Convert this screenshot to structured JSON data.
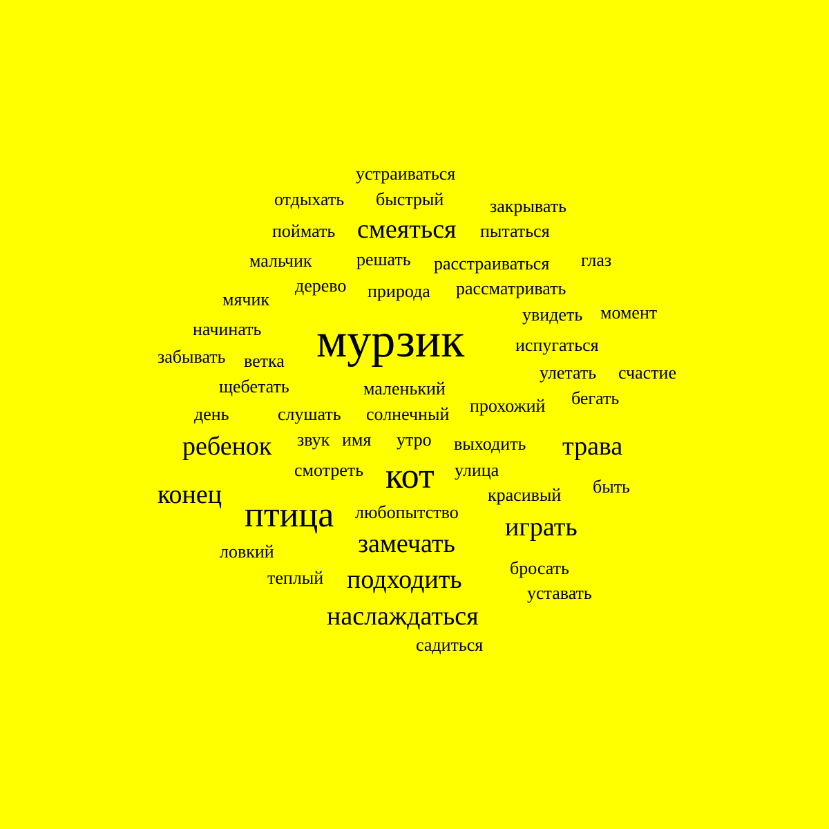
{
  "words": [
    {
      "text": "мурзик"
    },
    {
      "text": "кот"
    },
    {
      "text": "птица"
    },
    {
      "text": "смеяться"
    },
    {
      "text": "ребенок"
    },
    {
      "text": "трава"
    },
    {
      "text": "конец"
    },
    {
      "text": "играть"
    },
    {
      "text": "замечать"
    },
    {
      "text": "подходить"
    },
    {
      "text": "наслаждаться"
    },
    {
      "text": "устраиваться"
    },
    {
      "text": "отдыхать"
    },
    {
      "text": "быстрый"
    },
    {
      "text": "закрывать"
    },
    {
      "text": "поймать"
    },
    {
      "text": "пытаться"
    },
    {
      "text": "мальчик"
    },
    {
      "text": "решать"
    },
    {
      "text": "расстраиваться"
    },
    {
      "text": "глаз"
    },
    {
      "text": "дерево"
    },
    {
      "text": "природа"
    },
    {
      "text": "рассматривать"
    },
    {
      "text": "мячик"
    },
    {
      "text": "увидеть"
    },
    {
      "text": "момент"
    },
    {
      "text": "начинать"
    },
    {
      "text": "испугаться"
    },
    {
      "text": "забывать"
    },
    {
      "text": "ветка"
    },
    {
      "text": "улетать"
    },
    {
      "text": "счастие"
    },
    {
      "text": "щебетать"
    },
    {
      "text": "маленький"
    },
    {
      "text": "бегать"
    },
    {
      "text": "день"
    },
    {
      "text": "слушать"
    },
    {
      "text": "солнечный"
    },
    {
      "text": "прохожий"
    },
    {
      "text": "звук"
    },
    {
      "text": "имя"
    },
    {
      "text": "утро"
    },
    {
      "text": "выходить"
    },
    {
      "text": "смотреть"
    },
    {
      "text": "улица"
    },
    {
      "text": "быть"
    },
    {
      "text": "красивый"
    },
    {
      "text": "любопытство"
    },
    {
      "text": "ловкий"
    },
    {
      "text": "бросать"
    },
    {
      "text": "теплый"
    },
    {
      "text": "уставать"
    },
    {
      "text": "садиться"
    }
  ],
  "colors": {
    "background": "#ffff00",
    "text": "#000000"
  }
}
